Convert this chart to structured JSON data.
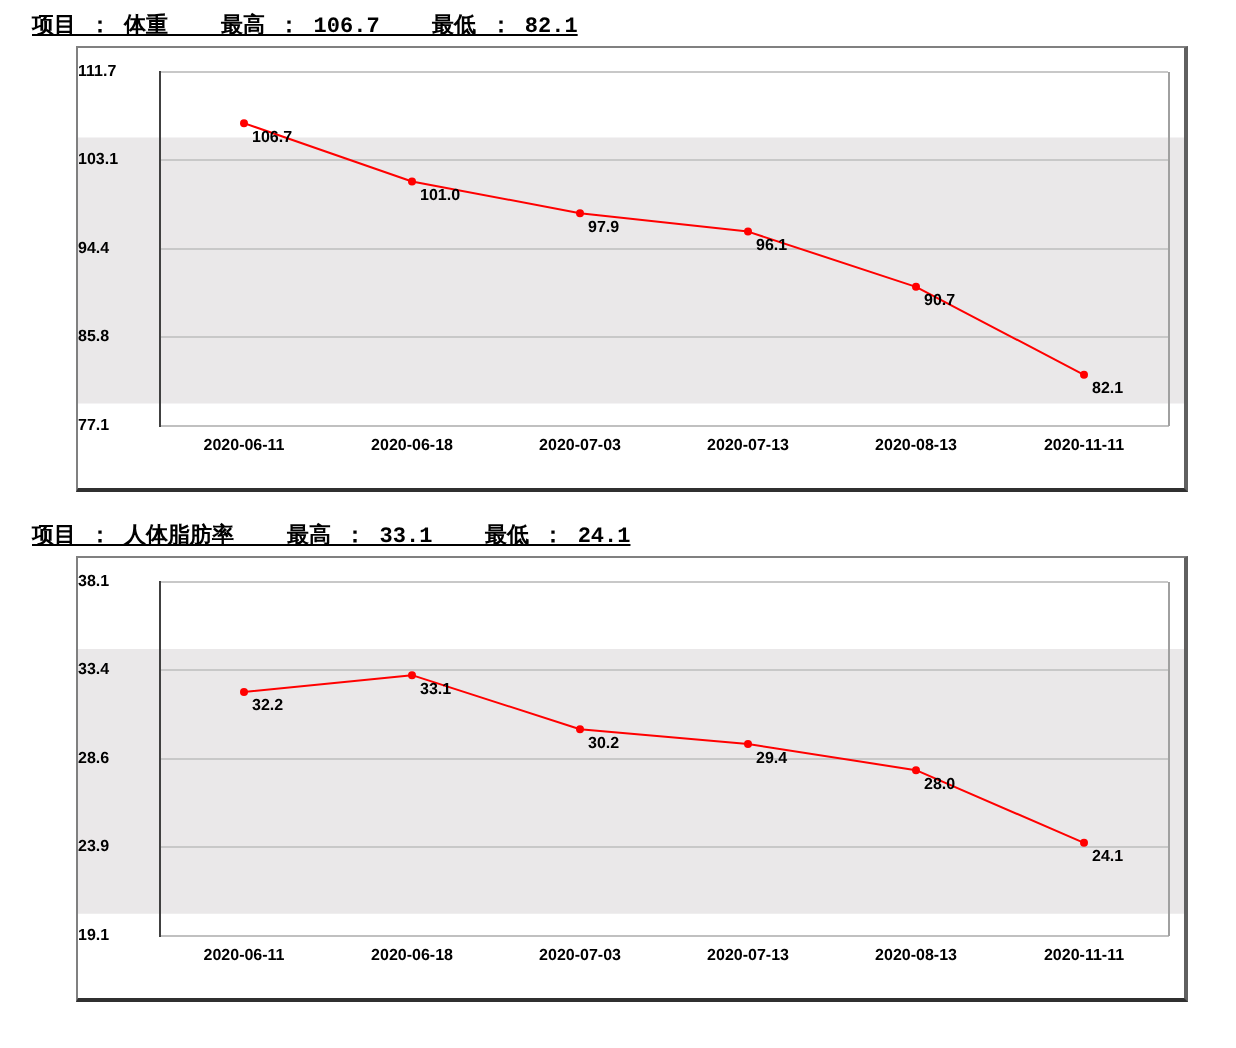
{
  "chart_data": [
    {
      "type": "line",
      "title": "项目 ： 体重    最高 ： 106.7    最低 ： 82.1",
      "categories": [
        "2020-06-11",
        "2020-06-18",
        "2020-07-03",
        "2020-07-13",
        "2020-08-13",
        "2020-11-11"
      ],
      "series": [
        {
          "color": "#ff0000",
          "values": [
            106.7,
            101.0,
            97.9,
            96.1,
            90.7,
            82.1
          ],
          "value_labels": [
            "106.7",
            "101.0",
            "97.9",
            "96.1",
            "90.7",
            "82.1"
          ]
        }
      ],
      "ylim": [
        77.1,
        111.7
      ],
      "yticks": [
        77.1,
        85.8,
        94.4,
        103.1,
        111.7
      ],
      "grid": "y",
      "marker": "circle",
      "bands": [
        {
          "axis": "y",
          "from": 79.3,
          "to": 105.3,
          "color": "#eae8e9"
        }
      ]
    },
    {
      "type": "line",
      "title": "项目 ： 人体脂肪率    最高 ： 33.1    最低 ： 24.1",
      "categories": [
        "2020-06-11",
        "2020-06-18",
        "2020-07-03",
        "2020-07-13",
        "2020-08-13",
        "2020-11-11"
      ],
      "series": [
        {
          "color": "#ff0000",
          "values": [
            32.2,
            33.1,
            30.2,
            29.4,
            28.0,
            24.1
          ],
          "value_labels": [
            "32.2",
            "33.1",
            "30.2",
            "29.4",
            "28.0",
            "24.1"
          ]
        }
      ],
      "ylim": [
        19.1,
        38.1
      ],
      "yticks": [
        19.1,
        23.9,
        28.6,
        33.4,
        38.1
      ],
      "grid": "y",
      "marker": "circle",
      "bands": [
        {
          "axis": "y",
          "from": 20.3,
          "to": 34.5,
          "color": "#eae8e9"
        }
      ]
    }
  ]
}
